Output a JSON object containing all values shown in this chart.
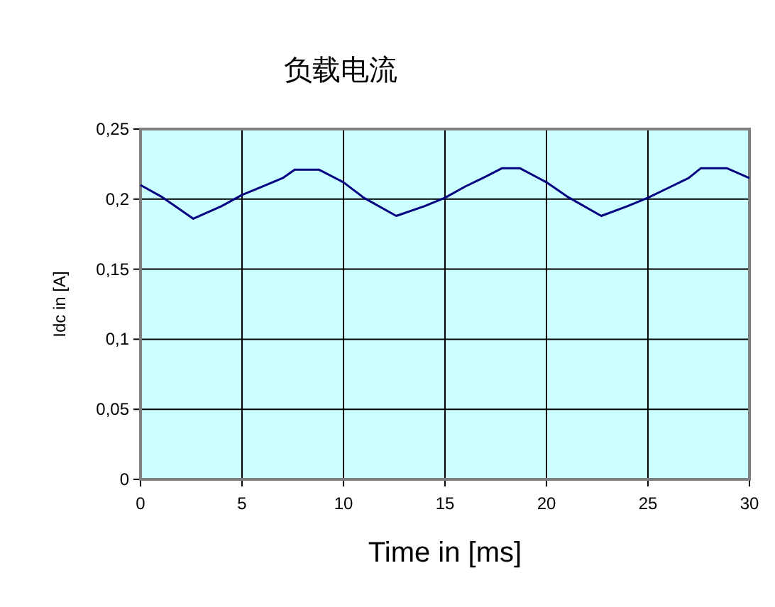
{
  "chart_data": {
    "type": "line",
    "title": "负载电流",
    "xlabel": "Time in [ms]",
    "ylabel": "Idc in [A]",
    "xlim": [
      0,
      30
    ],
    "xticks": [
      0,
      5,
      10,
      15,
      20,
      25,
      30
    ],
    "ylim": [
      0,
      0.25
    ],
    "yticks": [
      0,
      {
        "value": 0.05,
        "label": "0,05"
      },
      {
        "value": 0.1,
        "label": "0,1"
      },
      {
        "value": 0.15,
        "label": "0,15"
      },
      {
        "value": 0.2,
        "label": "0,2"
      },
      {
        "value": 0.25,
        "label": "0,25"
      }
    ],
    "grid": true,
    "marker": "none",
    "line_style": "solid",
    "series": [
      {
        "color": "#000080",
        "x": [
          0,
          1,
          2,
          2.6,
          4,
          5,
          6,
          7,
          7.6,
          8.8,
          10,
          11,
          12.6,
          14,
          15,
          16,
          17,
          17.8,
          18.7,
          20,
          21,
          22.7,
          24,
          25,
          26,
          27,
          27.6,
          28.9,
          30
        ],
        "values": [
          0.21,
          0.202,
          0.192,
          0.186,
          0.195,
          0.203,
          0.209,
          0.215,
          0.221,
          0.221,
          0.212,
          0.201,
          0.188,
          0.195,
          0.201,
          0.209,
          0.216,
          0.222,
          0.222,
          0.212,
          0.202,
          0.188,
          0.195,
          0.201,
          0.208,
          0.215,
          0.222,
          0.222,
          0.215
        ]
      }
    ]
  }
}
